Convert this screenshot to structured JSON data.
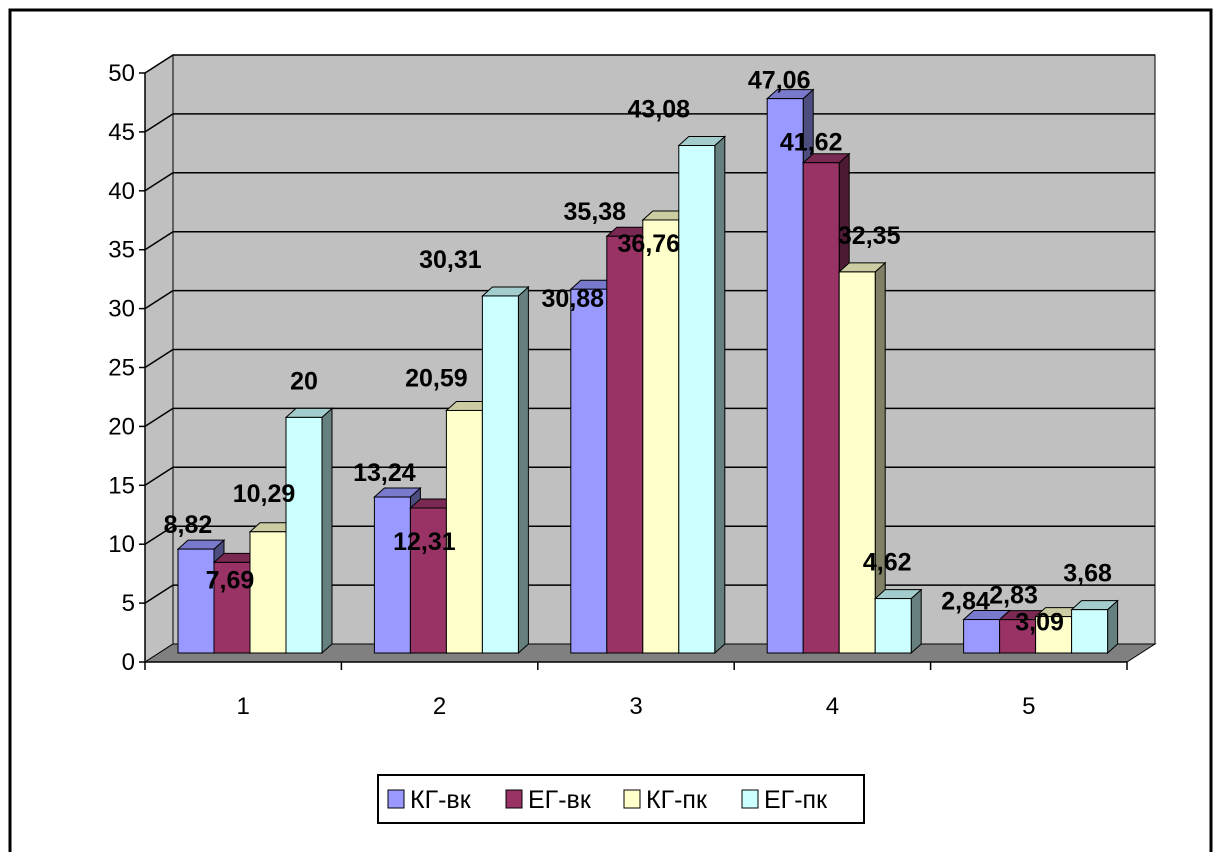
{
  "chart_data": {
    "type": "bar",
    "categories": [
      "1",
      "2",
      "3",
      "4",
      "5"
    ],
    "series": [
      {
        "name": "КГ-вк",
        "values": [
          8.82,
          13.24,
          30.88,
          47.06,
          2.84
        ],
        "labels": [
          "8,82",
          "13,24",
          "30,88",
          "47,06",
          "2,84"
        ],
        "color": "#9999ff"
      },
      {
        "name": "ЕГ-вк",
        "values": [
          7.69,
          12.31,
          35.38,
          41.62,
          2.83
        ],
        "labels": [
          "7,69",
          "12,31",
          "35,38",
          "41,62",
          "2,83"
        ],
        "color": "#993366"
      },
      {
        "name": "КГ-пк",
        "values": [
          10.29,
          20.59,
          36.76,
          32.35,
          3.09
        ],
        "labels": [
          "10,29",
          "20,59",
          "36,76",
          "32,35",
          "3,09"
        ],
        "color": "#ffffcc"
      },
      {
        "name": "ЕГ-пк",
        "values": [
          20,
          30.31,
          43.08,
          4.62,
          3.68
        ],
        "labels": [
          "20",
          "30,31",
          "43,08",
          "4,62",
          "3,68"
        ],
        "color": "#ccffff"
      }
    ],
    "y_ticks": [
      "0",
      "5",
      "10",
      "15",
      "20",
      "25",
      "30",
      "35",
      "40",
      "45",
      "50"
    ],
    "ylim": [
      0,
      50
    ],
    "grid": true,
    "legend_position": "bottom",
    "wall_color": "#c0c0c0",
    "floor_color": "#808080"
  }
}
